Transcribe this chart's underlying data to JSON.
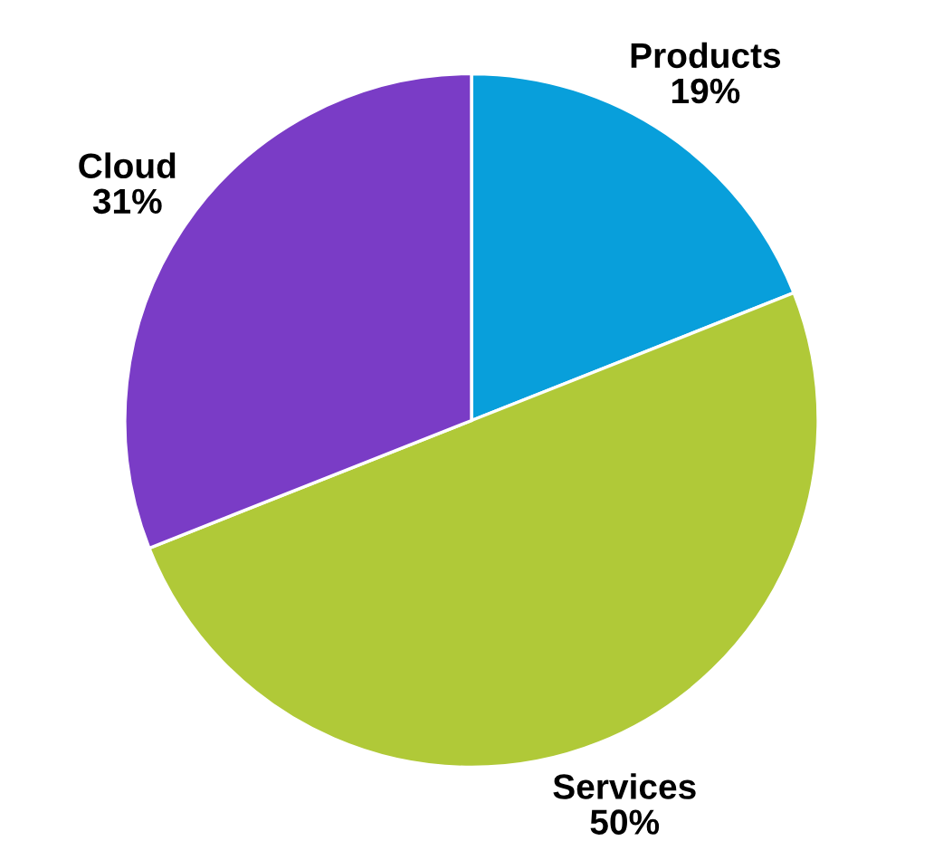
{
  "chart_data": {
    "type": "pie",
    "categories": [
      "Products",
      "Services",
      "Cloud"
    ],
    "values": [
      19,
      50,
      31
    ],
    "value_labels": [
      "19%",
      "50%",
      "31%"
    ],
    "colors": [
      "#089fdb",
      "#b0c938",
      "#7a3cc6"
    ]
  }
}
